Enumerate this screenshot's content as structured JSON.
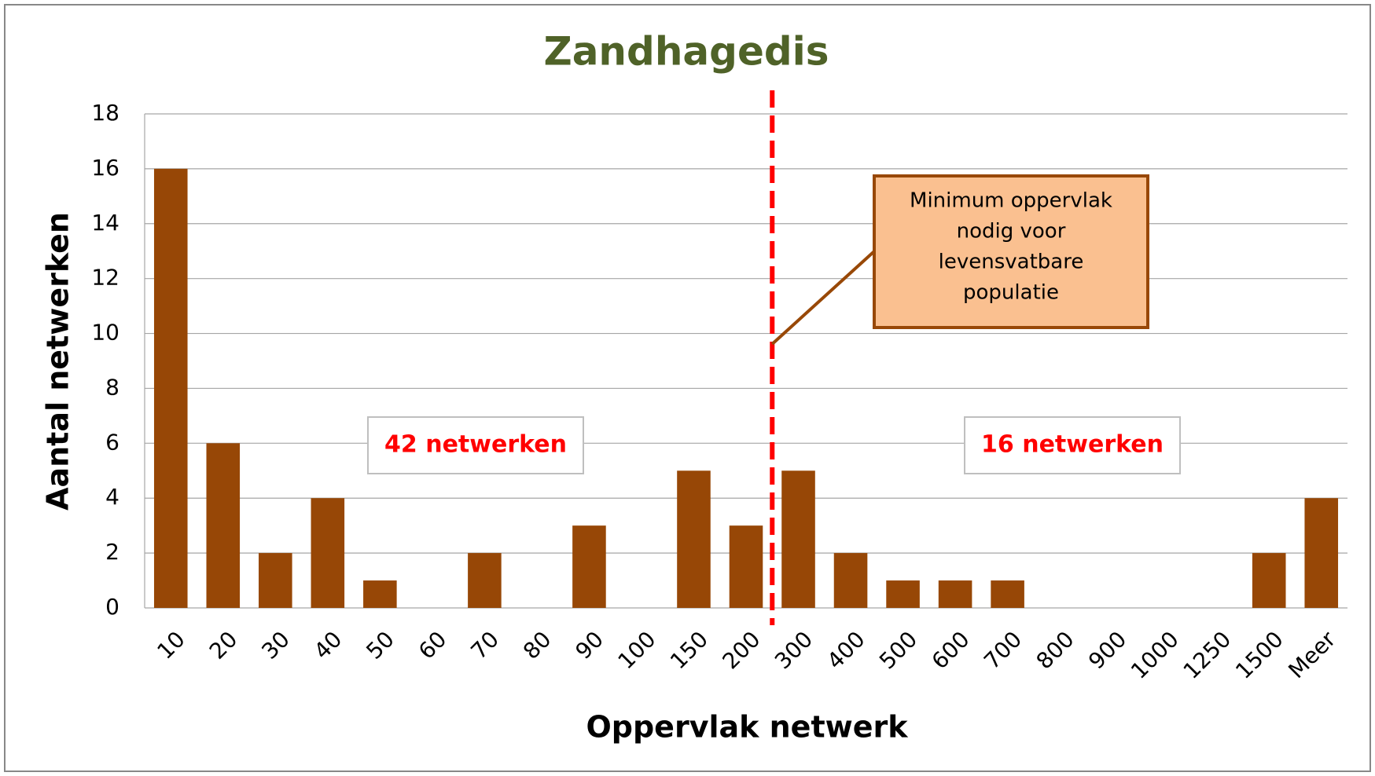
{
  "chart_data": {
    "type": "bar",
    "title": "Zandhagedis",
    "x_label": "Oppervlak netwerk",
    "y_label": "Aantal netwerken",
    "categories": [
      "10",
      "20",
      "30",
      "40",
      "50",
      "60",
      "70",
      "80",
      "90",
      "100",
      "150",
      "200",
      "300",
      "400",
      "500",
      "600",
      "700",
      "800",
      "900",
      "1000",
      "1250",
      "1500",
      "Meer"
    ],
    "values": [
      16,
      6,
      2,
      4,
      1,
      0,
      2,
      0,
      3,
      0,
      5,
      3,
      5,
      2,
      1,
      1,
      1,
      0,
      0,
      0,
      0,
      2,
      4
    ],
    "color": "#974706",
    "ylim": [
      0,
      18
    ],
    "yticks": [
      0,
      2,
      4,
      6,
      8,
      10,
      12,
      14,
      16,
      18
    ],
    "grid": true,
    "annotations": {
      "left_count": "42 netwerken",
      "right_count": "16 netwerken",
      "callout": [
        "Minimum oppervlak",
        "nodig voor",
        "levensvatbare",
        "populatie"
      ]
    }
  }
}
